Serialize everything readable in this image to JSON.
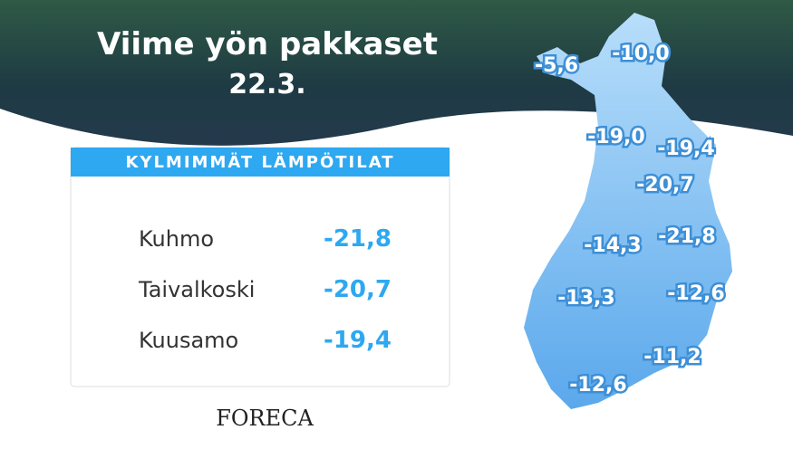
{
  "header": {
    "title": "Viime yön pakkaset",
    "date": "22.3."
  },
  "table": {
    "title": "KYLMIMMÄT LÄMPÖTILAT",
    "rows": [
      [
        "Kuhmo",
        "-21,8"
      ],
      [
        "Taivalkoski",
        "-20,7"
      ],
      [
        "Kuusamo",
        "-19,4"
      ]
    ]
  },
  "map": {
    "labels": [
      "-5,6",
      "-10,0",
      "-19,0",
      "-19,4",
      "-20,7",
      "-21,8",
      "-14,3",
      "-13,3",
      "-12,6",
      "-11,2",
      "-12,6"
    ]
  },
  "logo": "FORECA"
}
